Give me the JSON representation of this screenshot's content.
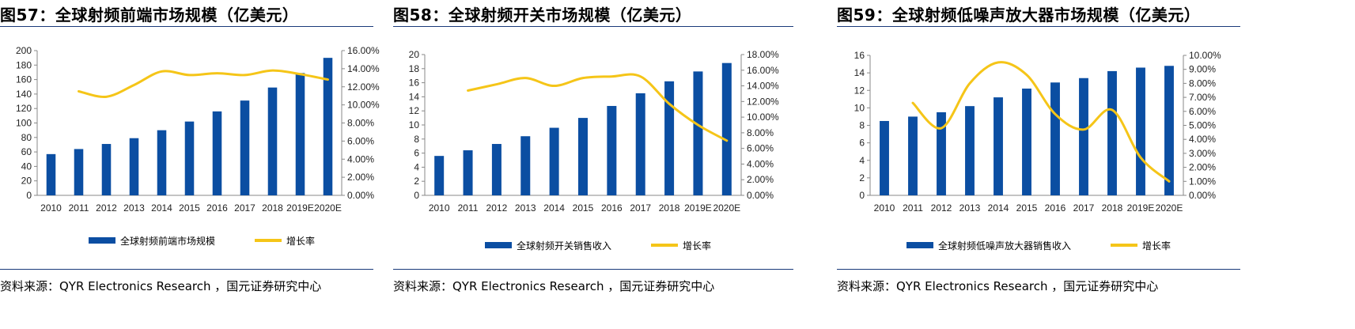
{
  "colors": {
    "bar": "#0b4ea2",
    "line": "#f5c518",
    "rule": "#1a3a7a"
  },
  "panels": [
    {
      "title": "图57：全球射频前端市场规模（亿美元）",
      "source": "资料来源：QYR Electronics Research ，国元证券研究中心",
      "legend": {
        "bar": "全球射频前端市场规模",
        "line": "增长率"
      }
    },
    {
      "title": "图58：全球射频开关市场规模（亿美元）",
      "source": "资料来源：QYR Electronics Research ，国元证券研究中心",
      "legend": {
        "bar": "全球射频开关销售收入",
        "line": "增长率"
      }
    },
    {
      "title": "图59：全球射频低噪声放大器市场规模（亿美元）",
      "source": "资料来源：QYR Electronics Research ，国元证券研究中心",
      "legend": {
        "bar": "全球射频低噪声放大器销售收入",
        "line": "增长率"
      }
    }
  ],
  "chart_data": [
    {
      "type": "bar",
      "categories": [
        "2010",
        "2011",
        "2012",
        "2013",
        "2014",
        "2015",
        "2016",
        "2017",
        "2018",
        "2019E",
        "2020E"
      ],
      "series": [
        {
          "name": "全球射频前端市场规模",
          "type": "bar",
          "axis": "left",
          "values": [
            57,
            64,
            71,
            79,
            90,
            102,
            116,
            131,
            149,
            169,
            190
          ]
        },
        {
          "name": "增长率",
          "type": "line",
          "axis": "right",
          "values": [
            null,
            11.5,
            10.9,
            12.2,
            13.7,
            13.3,
            13.5,
            13.3,
            13.8,
            13.4,
            12.8
          ]
        }
      ],
      "ylim_left": [
        0,
        200
      ],
      "yticks_left": [
        "0",
        "20",
        "40",
        "60",
        "80",
        "100",
        "120",
        "140",
        "160",
        "180",
        "200"
      ],
      "ylim_right": [
        0,
        16
      ],
      "yticks_right": [
        "0.00%",
        "2.00%",
        "4.00%",
        "6.00%",
        "8.00%",
        "10.00%",
        "12.00%",
        "14.00%",
        "16.00%"
      ],
      "legend_position": "bottom"
    },
    {
      "type": "bar",
      "categories": [
        "2010",
        "2011",
        "2012",
        "2013",
        "2014",
        "2015",
        "2016",
        "2017",
        "2018",
        "2019E",
        "2020E"
      ],
      "series": [
        {
          "name": "全球射频开关销售收入",
          "type": "bar",
          "axis": "left",
          "values": [
            5.6,
            6.4,
            7.3,
            8.4,
            9.6,
            11.0,
            12.7,
            14.5,
            16.2,
            17.6,
            18.8
          ]
        },
        {
          "name": "增长率",
          "type": "line",
          "axis": "right",
          "values": [
            null,
            13.4,
            14.2,
            15.0,
            14.0,
            15.0,
            15.2,
            15.2,
            11.7,
            9.0,
            7.0
          ]
        }
      ],
      "ylim_left": [
        0,
        20
      ],
      "yticks_left": [
        "0",
        "2",
        "4",
        "6",
        "8",
        "10",
        "12",
        "14",
        "16",
        "18",
        "20"
      ],
      "ylim_right": [
        0,
        18
      ],
      "yticks_right": [
        "0.00%",
        "2.00%",
        "4.00%",
        "6.00%",
        "8.00%",
        "10.00%",
        "12.00%",
        "14.00%",
        "16.00%",
        "18.00%"
      ],
      "legend_position": "bottom"
    },
    {
      "type": "bar",
      "categories": [
        "2010",
        "2011",
        "2012",
        "2013",
        "2014",
        "2015",
        "2016",
        "2017",
        "2018",
        "2019E",
        "2020E"
      ],
      "series": [
        {
          "name": "全球射频低噪声放大器销售收入",
          "type": "bar",
          "axis": "left",
          "values": [
            8.5,
            9.0,
            9.5,
            10.2,
            11.2,
            12.2,
            12.9,
            13.4,
            14.2,
            14.6,
            14.8
          ]
        },
        {
          "name": "增长率",
          "type": "line",
          "axis": "right",
          "values": [
            null,
            6.6,
            4.8,
            8.0,
            9.5,
            8.6,
            5.8,
            4.7,
            6.1,
            2.7,
            1.0
          ]
        }
      ],
      "ylim_left": [
        0,
        16
      ],
      "yticks_left": [
        "0",
        "2",
        "4",
        "6",
        "8",
        "10",
        "12",
        "14",
        "16"
      ],
      "ylim_right": [
        0,
        10
      ],
      "yticks_right": [
        "0.00%",
        "1.00%",
        "2.00%",
        "3.00%",
        "4.00%",
        "5.00%",
        "6.00%",
        "7.00%",
        "8.00%",
        "9.00%",
        "10.00%"
      ],
      "legend_position": "bottom"
    }
  ]
}
